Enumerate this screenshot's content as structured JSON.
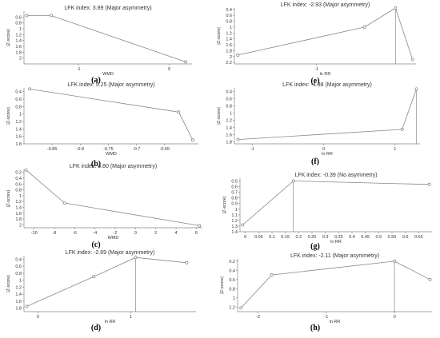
{
  "chart_data": [
    {
      "type": "line",
      "panel_label": "(a)",
      "title": "LFK index: 3.89 (Major asymmetry)",
      "xlabel": "WMD",
      "ylabel": "|Z-score|",
      "xlim": [
        -1.6,
        0.25
      ],
      "ylim": [
        2.2,
        0.4
      ],
      "xticks": [
        -1,
        0
      ],
      "xticklabels": [
        "-1",
        "0"
      ],
      "yticks": [
        0.6,
        0.8,
        1,
        1.2,
        1.4,
        1.6,
        1.8,
        2
      ],
      "yticklabels": [
        "0.6",
        "0.8",
        "1",
        "1.2",
        "1.4",
        "1.6",
        "1.8",
        "2"
      ],
      "x": [
        -1.57,
        -1.3,
        0.18
      ],
      "y": [
        0.55,
        0.55,
        2.13
      ],
      "grid": false
    },
    {
      "type": "line",
      "panel_label": "(e)",
      "title": "LFK index: -2.93 (Major asymmetry)",
      "xlabel": "ln RR",
      "ylabel": "|Z-score|",
      "xlim": [
        -2.2,
        0.45
      ],
      "ylim": [
        2.25,
        0.35
      ],
      "xticks": [
        -1
      ],
      "xticklabels": [
        "-1"
      ],
      "yticks": [
        0.4,
        0.6,
        0.8,
        1,
        1.2,
        1.4,
        1.6,
        1.8,
        2,
        2.2
      ],
      "yticklabels": [
        "0.4",
        "0.6",
        "0.8",
        "1",
        "1.2",
        "1.4",
        "1.6",
        "1.8",
        "2",
        "2.2"
      ],
      "x": [
        -2.15,
        -0.3,
        0.15,
        0.4
      ],
      "y": [
        1.95,
        1.0,
        0.35,
        2.1
      ],
      "vline": 0.15,
      "grid": false
    },
    {
      "type": "line",
      "panel_label": "(b)",
      "title": "LFK index: 5.25 (Major asymmetry)",
      "xlabel": "WMD",
      "ylabel": "|Z-score|",
      "xlim": [
        -0.9,
        -0.59
      ],
      "ylim": [
        1.8,
        0.3
      ],
      "xticks": [
        -0.85,
        -0.8,
        -0.75,
        -0.7,
        -0.65
      ],
      "xticklabels": [
        "-0.85",
        "-0.8",
        "-0.75",
        "-0.7",
        "-0.65"
      ],
      "yticks": [
        0.4,
        0.6,
        0.8,
        1,
        1.2,
        1.4,
        1.6,
        1.8
      ],
      "yticklabels": [
        "0.4",
        "0.6",
        "0.8",
        "1",
        "1.2",
        "1.4",
        "1.6",
        "1.8"
      ],
      "x": [
        -0.89,
        -0.625,
        -0.6
      ],
      "y": [
        0.33,
        0.95,
        1.7
      ],
      "grid": false
    },
    {
      "type": "line",
      "panel_label": "(f)",
      "title": "LFK index: -4.38 (Major asymmetry)",
      "xlabel": "ln RR",
      "ylabel": "|Z-score|",
      "xlim": [
        -1.25,
        1.35
      ],
      "ylim": [
        1.85,
        0.3
      ],
      "xticks": [
        -1,
        0,
        1
      ],
      "xticklabels": [
        "-1",
        "0",
        "1"
      ],
      "yticks": [
        0.4,
        0.6,
        0.8,
        1,
        1.2,
        1.4,
        1.6,
        1.8
      ],
      "yticklabels": [
        "0.4",
        "0.6",
        "0.8",
        "1",
        "1.2",
        "1.4",
        "1.6",
        "1.8"
      ],
      "x": [
        -1.2,
        1.1,
        1.3
      ],
      "y": [
        1.73,
        1.45,
        0.33
      ],
      "vline": 1.3,
      "grid": false
    },
    {
      "type": "line",
      "panel_label": "(c)",
      "title": "LFK index: 4.80 (Major asymmetry)",
      "xlabel": "WMD",
      "ylabel": "|Z-score|",
      "xlim": [
        -11,
        6.6
      ],
      "ylim": [
        2.1,
        0.1
      ],
      "xticks": [
        -10,
        -8,
        -6,
        -4,
        -2,
        0,
        2,
        4,
        6
      ],
      "xticklabels": [
        "-10",
        "-8",
        "-6",
        "-4",
        "-2",
        "0",
        "2",
        "4",
        "6"
      ],
      "yticks": [
        0.2,
        0.4,
        0.6,
        0.8,
        1,
        1.2,
        1.4,
        1.6,
        1.8,
        2
      ],
      "yticklabels": [
        "0.2",
        "0.4",
        "0.6",
        "0.8",
        "1",
        "1.2",
        "1.4",
        "1.6",
        "1.8",
        "2"
      ],
      "x": [
        -10.8,
        -7,
        6.3
      ],
      "y": [
        0.12,
        1.25,
        2.03
      ],
      "grid": false
    },
    {
      "type": "line",
      "panel_label": "(g)",
      "title": "LFK index: -0.39 (No asymmetry)",
      "xlabel": "ln RR",
      "ylabel": "|Z-score|",
      "xlim": [
        -0.02,
        0.7
      ],
      "ylim": [
        1.4,
        0.45
      ],
      "xticks": [
        0,
        0.05,
        0.1,
        0.15,
        0.2,
        0.25,
        0.3,
        0.35,
        0.4,
        0.45,
        0.5,
        0.55,
        0.6,
        0.65
      ],
      "xticklabels": [
        "0",
        "0.05",
        "0.1",
        "0.15",
        "0.2",
        "0.25",
        "0.3",
        "0.35",
        "0.4",
        "0.45",
        "0.5",
        "0.55",
        "0.6",
        "0.65"
      ],
      "yticks": [
        0.5,
        0.6,
        0.7,
        0.8,
        0.9,
        1,
        1.1,
        1.2,
        1.3,
        1.4
      ],
      "yticklabels": [
        "0.5",
        "0.6",
        "0.7",
        "0.8",
        "0.9",
        "1",
        "1.1",
        "1.2",
        "1.3",
        "1.4"
      ],
      "x": [
        -0.01,
        0.18,
        0.69
      ],
      "y": [
        1.28,
        0.5,
        0.56
      ],
      "vline": 0.18,
      "grid": false
    },
    {
      "type": "line",
      "panel_label": "(d)",
      "title": "LFK index: -2.69 (Major asymmetry)",
      "xlabel": "ln RR",
      "ylabel": "|Z-score|",
      "xlim": [
        -0.15,
        1.7
      ],
      "ylim": [
        1.9,
        0.3
      ],
      "xticks": [
        0,
        1
      ],
      "xticklabels": [
        "0",
        "1"
      ],
      "yticks": [
        0.4,
        0.6,
        0.8,
        1,
        1.2,
        1.4,
        1.6,
        1.8
      ],
      "yticklabels": [
        "0.4",
        "0.6",
        "0.8",
        "1",
        "1.2",
        "1.4",
        "1.6",
        "1.8"
      ],
      "x": [
        -0.12,
        0.6,
        1.05,
        1.6
      ],
      "y": [
        1.75,
        0.9,
        0.35,
        0.5
      ],
      "vline": 1.05,
      "grid": false
    },
    {
      "type": "line",
      "panel_label": "(h)",
      "title": "LFK index: -2.11 (Major asymmetry)",
      "xlabel": "ln RR",
      "ylabel": "|Z-score|",
      "xlim": [
        -2.3,
        0.55
      ],
      "ylim": [
        1.3,
        0.15
      ],
      "xticks": [
        -2,
        -1,
        0
      ],
      "xticklabels": [
        "-2",
        "-1",
        "0"
      ],
      "yticks": [
        0.2,
        0.4,
        0.6,
        0.8,
        1,
        1.2
      ],
      "yticklabels": [
        "0.2",
        "0.4",
        "0.6",
        "0.8",
        "1",
        "1.2"
      ],
      "x": [
        -2.25,
        -1.8,
        0,
        0.52
      ],
      "y": [
        1.22,
        0.5,
        0.2,
        0.6
      ],
      "vline": 0,
      "grid": false
    }
  ]
}
